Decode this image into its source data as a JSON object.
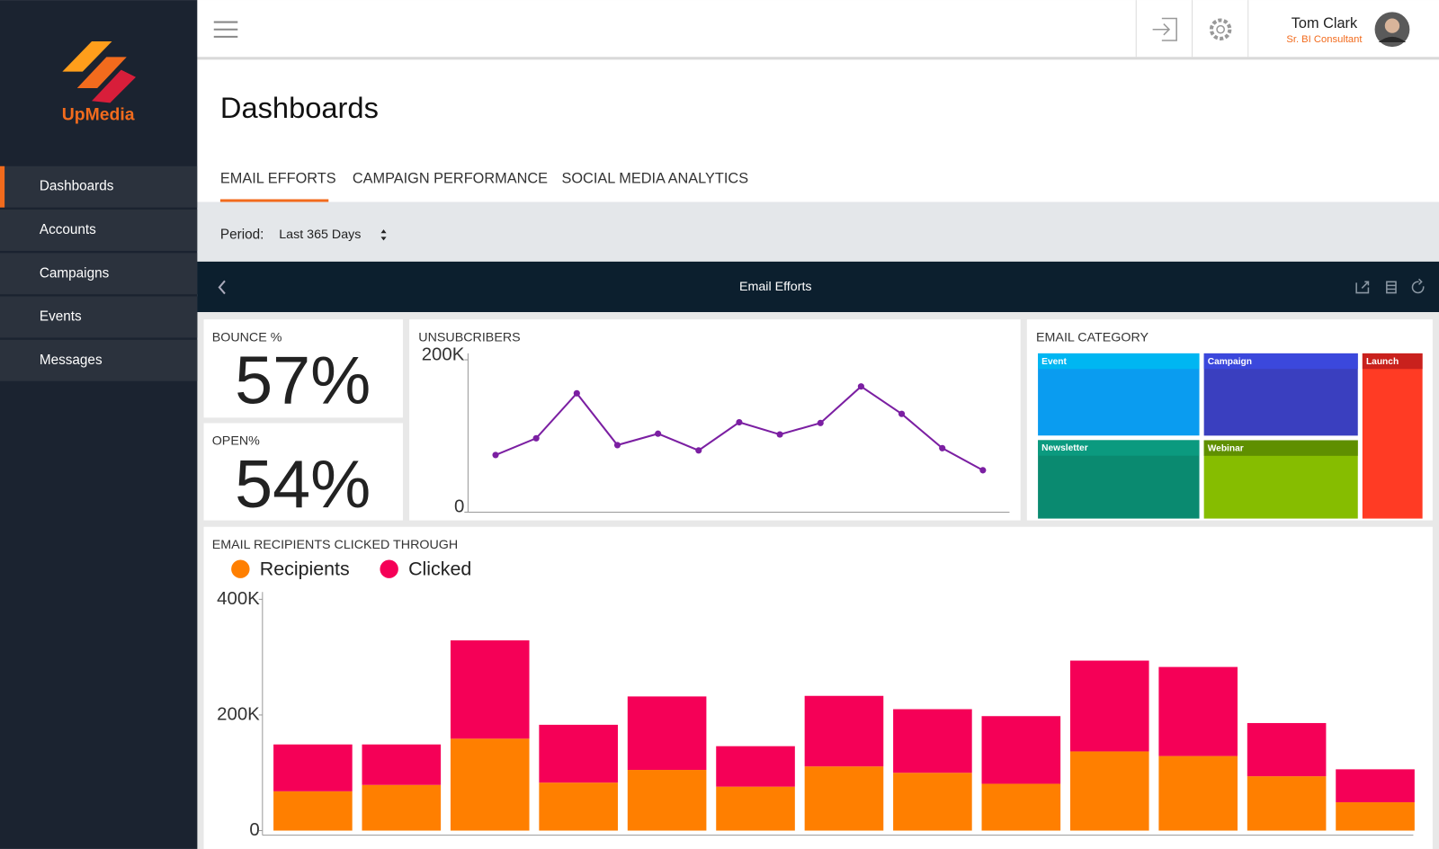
{
  "brand": "UpMedia",
  "nav": [
    "Dashboards",
    "Accounts",
    "Campaigns",
    "Events",
    "Messages"
  ],
  "user": {
    "name": "Tom Clark",
    "role": "Sr. BI Consultant"
  },
  "page_title": "Dashboards",
  "tabs": [
    "EMAIL EFFORTS",
    "CAMPAIGN PERFORMANCE",
    "SOCIAL MEDIA ANALYTICS"
  ],
  "filter": {
    "label": "Period:",
    "value": "Last 365 Days"
  },
  "panel_title": "Email Efforts",
  "kpis": [
    {
      "label": "BOUNCE %",
      "value": "57%"
    },
    {
      "label": "OPEN%",
      "value": "54%"
    }
  ],
  "chart_data": [
    {
      "type": "line",
      "title": "UNSUBCRIBERS",
      "color": "#7b1fa2",
      "values": [
        75000,
        97000,
        156000,
        88000,
        103000,
        81000,
        118000,
        102000,
        117000,
        165000,
        129000,
        84000,
        55000
      ],
      "ylim": [
        0,
        200000
      ],
      "yticks": [
        0,
        {
          "value": 200000,
          "label": "200K"
        }
      ]
    },
    {
      "type": "treemap",
      "title": "EMAIL CATEGORY",
      "categories": [
        "Event",
        "Campaign",
        "Launch",
        "Newsletter",
        "Webinar"
      ],
      "values": [
        22,
        21,
        16,
        21,
        20
      ],
      "colors": [
        "#0a9cf0",
        "#3a3fbf",
        "#ff3b24",
        "#0a8a70",
        "#86bd00"
      ],
      "header_colors": [
        "#00b6f2",
        "#3b48dc",
        "#c9211d",
        "#0b9a7f",
        "#5f8f00"
      ]
    },
    {
      "type": "stacked_bar",
      "title": "EMAIL RECIPIENTS CLICKED THROUGH",
      "series": [
        {
          "name": "Recipients",
          "color": "#ff7f00",
          "values": [
            68000,
            79000,
            159000,
            83000,
            105000,
            76000,
            111000,
            100000,
            81000,
            137000,
            129000,
            94000,
            49000
          ]
        },
        {
          "name": "Clicked",
          "color": "#f50057",
          "values": [
            81000,
            70000,
            170000,
            100000,
            127000,
            70000,
            122000,
            110000,
            117000,
            157000,
            154000,
            92000,
            57000
          ]
        }
      ],
      "ylim": [
        0,
        400000
      ],
      "yticks": [
        0,
        {
          "value": 200000,
          "label": "200K"
        },
        {
          "value": 400000,
          "label": "400K"
        }
      ]
    }
  ]
}
